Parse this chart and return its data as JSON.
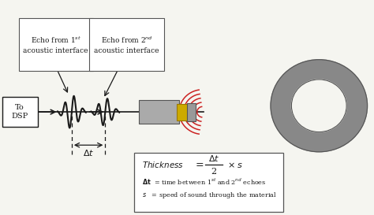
{
  "bg_color": "#f5f5f0",
  "line_color": "#1a1a1a",
  "box_fill": "#ffffff",
  "box_edge": "#333333",
  "dsp_label": "To\nDSP",
  "delta_t_label": "dt",
  "wave_color": "#cc2222",
  "ring_color": "#888888",
  "ring_border": "#555555",
  "probe_body_color": "#aaaaaa",
  "probe_tip_color": "#ccaa00",
  "probe_conn_color": "#999999"
}
